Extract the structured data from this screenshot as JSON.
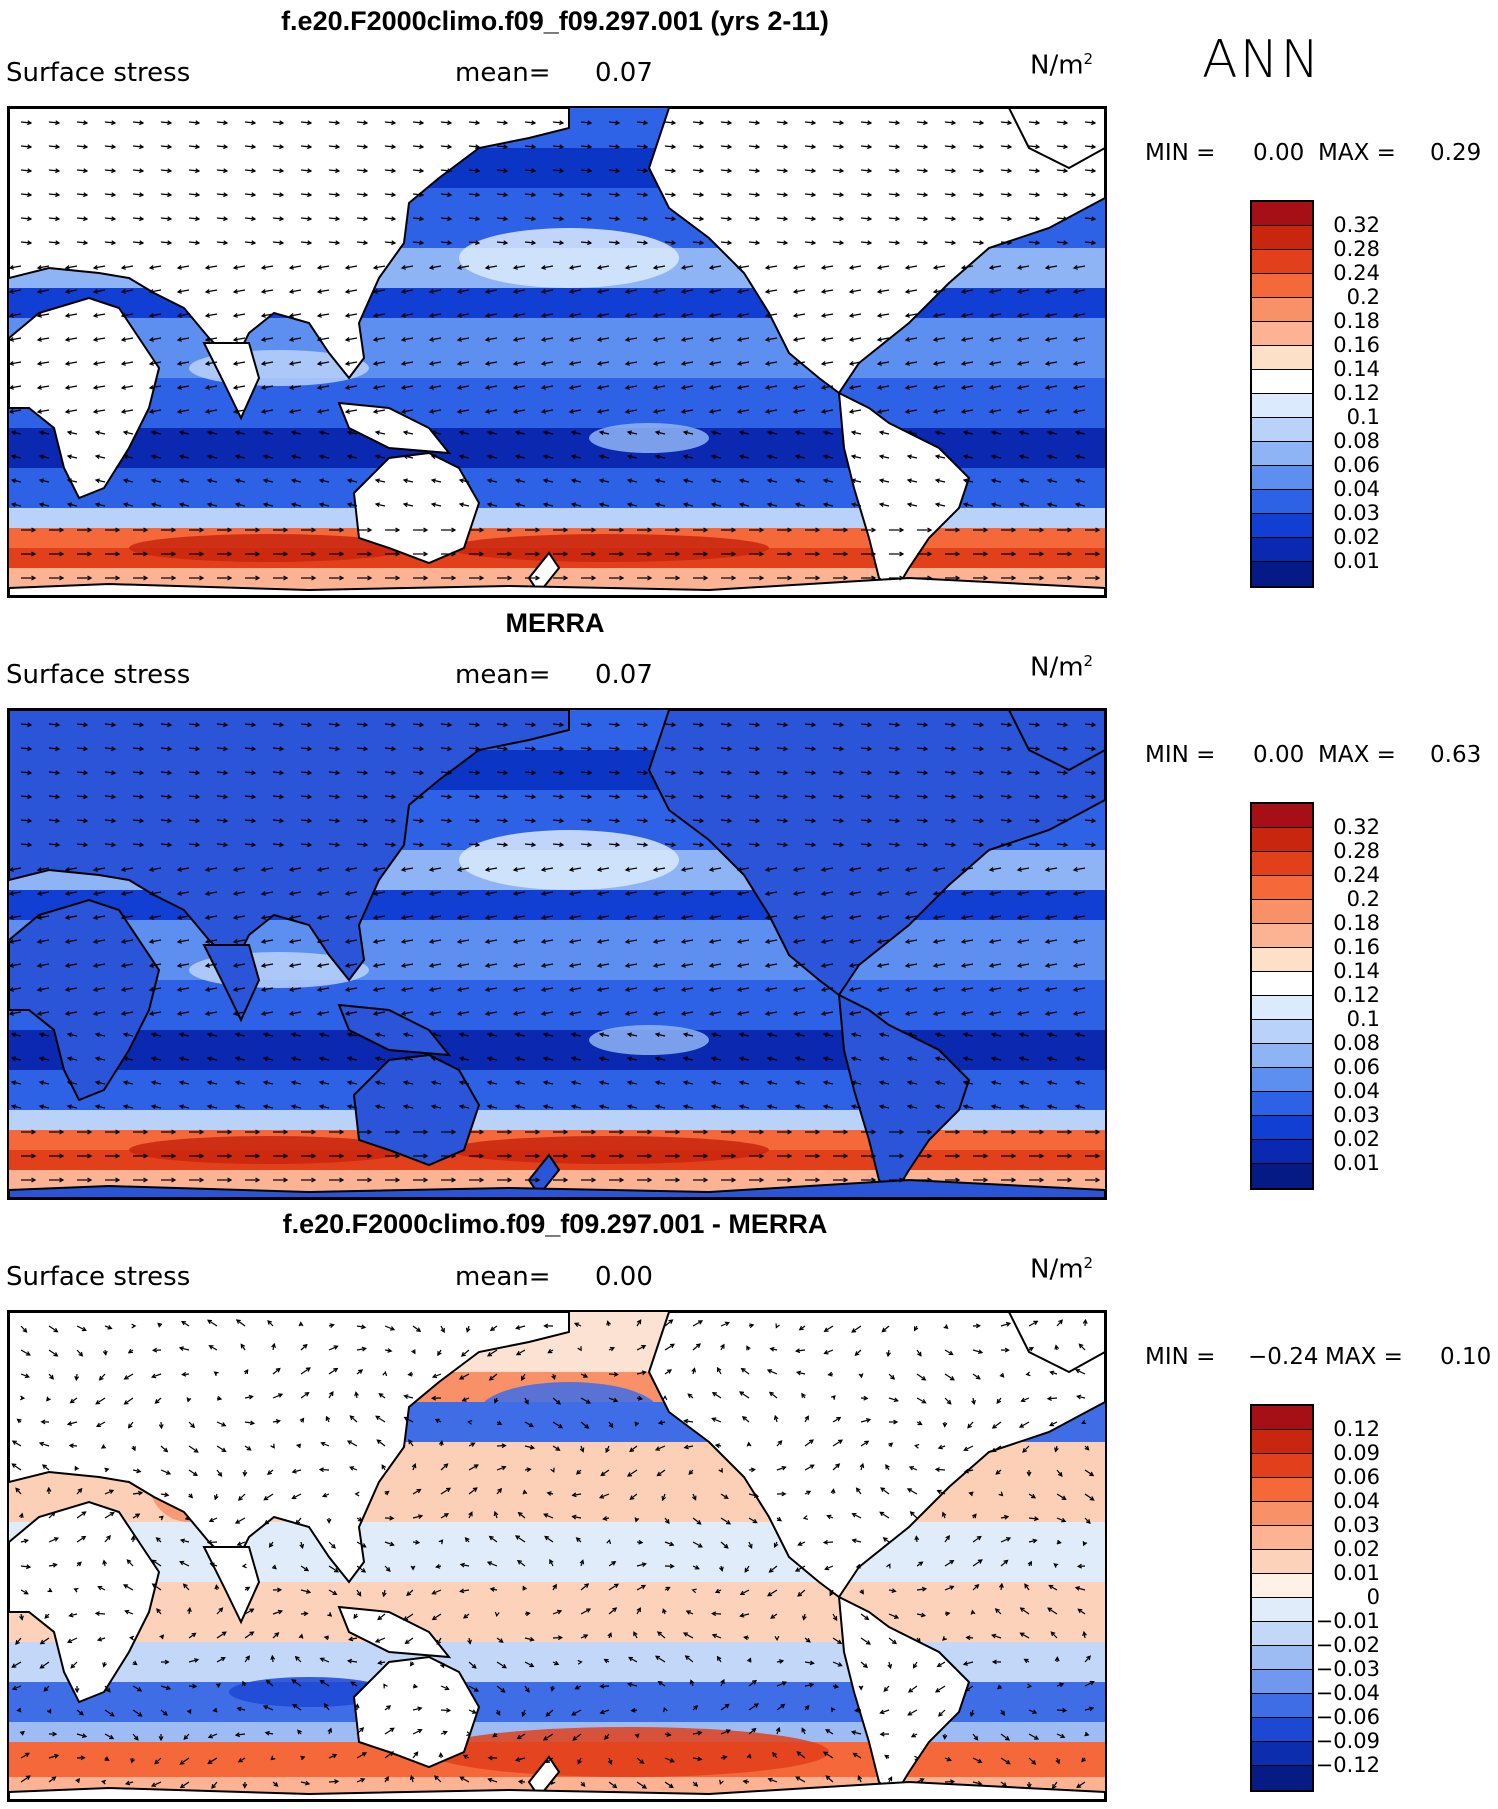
{
  "season": "ANN",
  "panels": [
    {
      "title": "f.e20.F2000climo.f09_f09.297.001 (yrs 2-11)",
      "variable": "Surface stress",
      "mean_label": "mean=",
      "mean_value": "0.07",
      "units_base": "N/m",
      "units_exp": "2",
      "min_label": "MIN =",
      "min_value": "0.00",
      "max_label": "MAX =",
      "max_value": "0.29",
      "colorbar_levels": [
        "0.32",
        "0.28",
        "0.24",
        "0.2",
        "0.18",
        "0.16",
        "0.14",
        "0.12",
        "0.1",
        "0.08",
        "0.06",
        "0.04",
        "0.03",
        "0.02",
        "0.01"
      ],
      "colorbar_colors": [
        "#a50f15",
        "#c8260e",
        "#e2401a",
        "#f4683a",
        "#f89068",
        "#fbb393",
        "#fde0c8",
        "#ffffff",
        "#dbeafc",
        "#b8d2fa",
        "#8fb4f5",
        "#5d8ff0",
        "#2d62e6",
        "#123fd3",
        "#0a28b0",
        "#051a84"
      ]
    },
    {
      "title": "MERRA",
      "variable": "Surface stress",
      "mean_label": "mean=",
      "mean_value": "0.07",
      "units_base": "N/m",
      "units_exp": "2",
      "min_label": "MIN =",
      "min_value": "0.00",
      "max_label": "MAX =",
      "max_value": "0.63",
      "colorbar_levels": [
        "0.32",
        "0.28",
        "0.24",
        "0.2",
        "0.18",
        "0.16",
        "0.14",
        "0.12",
        "0.1",
        "0.08",
        "0.06",
        "0.04",
        "0.03",
        "0.02",
        "0.01"
      ],
      "colorbar_colors": [
        "#a50f15",
        "#c8260e",
        "#e2401a",
        "#f4683a",
        "#f89068",
        "#fbb393",
        "#fde0c8",
        "#ffffff",
        "#dbeafc",
        "#b8d2fa",
        "#8fb4f5",
        "#5d8ff0",
        "#2d62e6",
        "#123fd3",
        "#0a28b0",
        "#051a84"
      ]
    },
    {
      "title": "f.e20.F2000climo.f09_f09.297.001 - MERRA",
      "variable": "Surface stress",
      "mean_label": "mean=",
      "mean_value": "0.00",
      "units_base": "N/m",
      "units_exp": "2",
      "min_label": "MIN =",
      "min_value": "−0.24",
      "max_label": "MAX =",
      "max_value": "0.10",
      "colorbar_levels": [
        "0.12",
        "0.09",
        "0.06",
        "0.04",
        "0.03",
        "0.02",
        "0.01",
        "0",
        "−0.01",
        "−0.02",
        "−0.03",
        "−0.04",
        "−0.06",
        "−0.09",
        "−0.12"
      ],
      "colorbar_colors": [
        "#a50f15",
        "#c8260e",
        "#e2401a",
        "#f4683a",
        "#f89068",
        "#fbb393",
        "#fcd3ba",
        "#fff1e6",
        "#e1ecfb",
        "#c3d8f8",
        "#9dbcf4",
        "#6f98ee",
        "#3e6de6",
        "#1c48d4",
        "#0c2eae",
        "#061c84"
      ]
    }
  ]
}
